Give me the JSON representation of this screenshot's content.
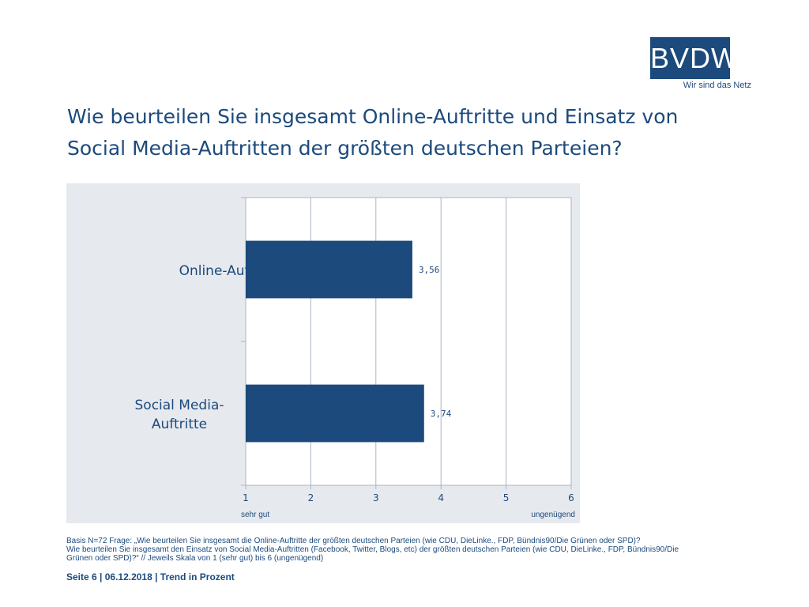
{
  "logo": {
    "brand": "BVDW",
    "tagline": "Wir sind das Netz"
  },
  "title_line1": "Wie beurteilen Sie insgesamt Online-Auftritte und Einsatz von",
  "title_line2": "Social Media-Auftritten der größten deutschen Parteien?",
  "chart_data": {
    "type": "bar",
    "orientation": "horizontal",
    "categories": [
      [
        "Online-Auftritte"
      ],
      [
        "Social Media-",
        "Auftritte"
      ]
    ],
    "values": [
      3.56,
      3.74
    ],
    "value_labels": [
      "3,56",
      "3,74"
    ],
    "xlim": [
      1,
      6
    ],
    "x_ticks": [
      "1",
      "2",
      "3",
      "4",
      "5",
      "6"
    ],
    "x_left_label": "sehr gut",
    "x_right_label": "ungenügend",
    "grid": true,
    "bar_color": "#1c4a7c"
  },
  "footnote": {
    "line1": "Basis N=72 Frage: „Wie beurteilen Sie insgesamt die Online-Auftritte der größten deutschen Parteien (wie CDU, DieLinke., FDP, Bündnis90/Die Grünen oder SPD)?",
    "line2": "Wie beurteilen Sie insgesamt den Einsatz von Social Media-Auftritten (Facebook, Twitter, Blogs, etc) der größten deutschen Parteien (wie CDU, DieLinke., FDP, Bündnis90/Die",
    "line3": "Grünen oder SPD)?“ // Jeweils Skala von 1 (sehr gut) bis 6 (ungenügend)"
  },
  "footer": "Seite 6 | 06.12.2018 | Trend in Prozent"
}
